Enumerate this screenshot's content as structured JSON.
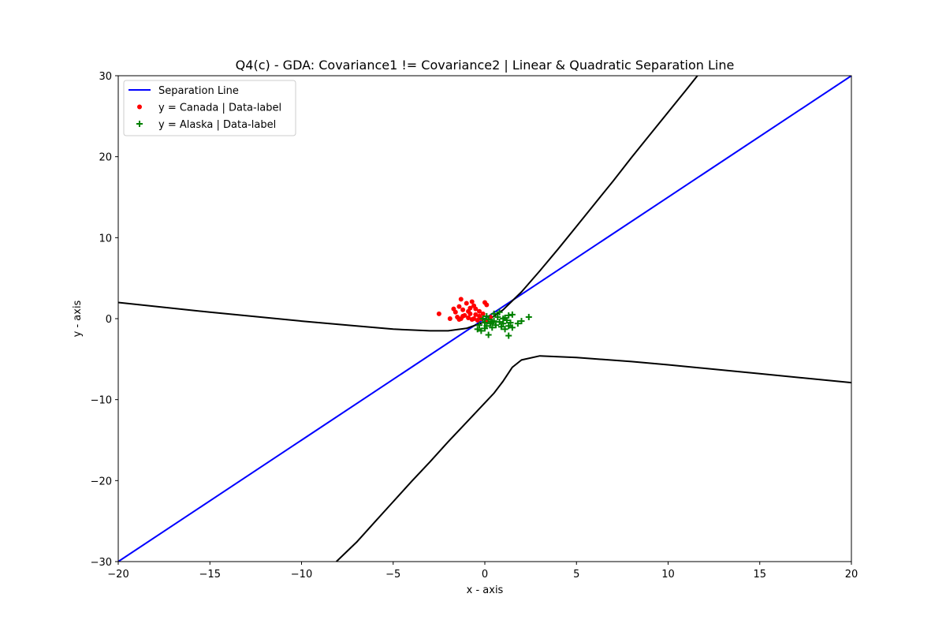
{
  "chart_data": {
    "type": "scatter",
    "title": "Q4(c) - GDA: Covariance1 != Covariance2 | Linear & Quadratic Separation Line",
    "xlabel": "x - axis",
    "ylabel": "y - axis",
    "xlim": [
      -20,
      20
    ],
    "ylim": [
      -30,
      30
    ],
    "xticks": [
      -20,
      -15,
      -10,
      -5,
      0,
      5,
      10,
      15,
      20
    ],
    "yticks": [
      -30,
      -20,
      -10,
      0,
      10,
      20,
      30
    ],
    "xtick_labels": [
      "−20",
      "−15",
      "−10",
      "−5",
      "0",
      "5",
      "10",
      "15",
      "20"
    ],
    "ytick_labels": [
      "−30",
      "−20",
      "−10",
      "0",
      "10",
      "20",
      "30"
    ],
    "grid": false,
    "legend_position": "top-left",
    "legend": [
      {
        "label": "Separation Line",
        "kind": "line",
        "color": "#0000ff"
      },
      {
        "label": "y = Canada | Data-label",
        "kind": "dot",
        "color": "#ff0000"
      },
      {
        "label": "y = Alaska | Data-label",
        "kind": "plus",
        "color": "#008000"
      }
    ],
    "lines": [
      {
        "name": "Separation Line",
        "color": "#0000ff",
        "points": [
          [
            -20,
            -30
          ],
          [
            20,
            30
          ]
        ]
      },
      {
        "color": "#000000",
        "points": [
          [
            -20,
            2.0
          ],
          [
            -15,
            0.8
          ],
          [
            -10,
            -0.3
          ],
          [
            -7,
            -0.9
          ],
          [
            -5,
            -1.3
          ],
          [
            -3,
            -1.5
          ],
          [
            -2,
            -1.5
          ],
          [
            -1,
            -1.2
          ],
          [
            0,
            -0.4
          ],
          [
            0.5,
            0.3
          ],
          [
            1,
            1.1
          ],
          [
            1.5,
            2.2
          ],
          [
            2,
            3.3
          ],
          [
            3,
            5.9
          ],
          [
            4,
            8.6
          ],
          [
            5,
            11.4
          ],
          [
            6,
            14.2
          ],
          [
            7,
            17.0
          ],
          [
            8,
            19.9
          ],
          [
            9,
            22.7
          ],
          [
            10,
            25.5
          ],
          [
            11,
            28.3
          ],
          [
            11.6,
            30
          ]
        ]
      },
      {
        "color": "#000000",
        "points": [
          [
            -8.1,
            -30
          ],
          [
            -7,
            -27.6
          ],
          [
            -6,
            -25.1
          ],
          [
            -5,
            -22.6
          ],
          [
            -4,
            -20.1
          ],
          [
            -3,
            -17.7
          ],
          [
            -2,
            -15.2
          ],
          [
            -1,
            -12.8
          ],
          [
            0,
            -10.4
          ],
          [
            0.5,
            -9.2
          ],
          [
            1,
            -7.7
          ],
          [
            1.5,
            -6.0
          ],
          [
            2,
            -5.1
          ],
          [
            3,
            -4.6
          ],
          [
            5,
            -4.8
          ],
          [
            8,
            -5.3
          ],
          [
            10,
            -5.7
          ],
          [
            15,
            -6.8
          ],
          [
            20,
            -7.9
          ]
        ]
      }
    ],
    "series": [
      {
        "name": "y = Canada | Data-label",
        "marker": "dot",
        "color": "#ff0000",
        "points": [
          [
            -2.5,
            0.6
          ],
          [
            -1.9,
            0.0
          ],
          [
            -1.7,
            1.2
          ],
          [
            -1.6,
            0.8
          ],
          [
            -1.5,
            0.2
          ],
          [
            -1.4,
            1.5
          ],
          [
            -1.3,
            2.4
          ],
          [
            -1.3,
            0.0
          ],
          [
            -1.2,
            1.1
          ],
          [
            -1.1,
            0.4
          ],
          [
            -1.0,
            1.9
          ],
          [
            -0.9,
            0.9
          ],
          [
            -0.9,
            0.1
          ],
          [
            -0.8,
            1.3
          ],
          [
            -0.8,
            0.6
          ],
          [
            -0.7,
            2.1
          ],
          [
            -0.6,
            1.6
          ],
          [
            -0.6,
            0.0
          ],
          [
            -0.5,
            1.2
          ],
          [
            -0.5,
            0.5
          ],
          [
            -0.4,
            -0.2
          ],
          [
            -0.3,
            0.9
          ],
          [
            -0.3,
            0.3
          ],
          [
            -0.2,
            0.0
          ],
          [
            -0.1,
            0.6
          ],
          [
            0.0,
            2.0
          ],
          [
            0.1,
            1.7
          ],
          [
            0.1,
            -0.3
          ],
          [
            -1.4,
            -0.1
          ],
          [
            -1.2,
            0.3
          ],
          [
            -0.7,
            -0.1
          ],
          [
            0.3,
            0.2
          ]
        ]
      },
      {
        "name": "y = Alaska | Data-label",
        "marker": "plus",
        "color": "#008000",
        "points": [
          [
            -0.4,
            -1.3
          ],
          [
            -0.3,
            -0.8
          ],
          [
            -0.2,
            -1.5
          ],
          [
            0.0,
            -0.5
          ],
          [
            0.1,
            -0.9
          ],
          [
            0.2,
            -0.1
          ],
          [
            0.2,
            -2.0
          ],
          [
            0.3,
            -0.6
          ],
          [
            0.4,
            -1.1
          ],
          [
            0.5,
            -0.3
          ],
          [
            0.6,
            -0.8
          ],
          [
            0.7,
            0.2
          ],
          [
            0.8,
            -0.4
          ],
          [
            0.9,
            -1.0
          ],
          [
            1.0,
            0.0
          ],
          [
            1.0,
            -0.6
          ],
          [
            1.1,
            -1.3
          ],
          [
            1.2,
            -0.2
          ],
          [
            1.3,
            -0.9
          ],
          [
            1.3,
            0.4
          ],
          [
            1.4,
            -0.5
          ],
          [
            1.5,
            -1.1
          ],
          [
            1.5,
            0.5
          ],
          [
            1.3,
            -2.1
          ],
          [
            1.8,
            -0.6
          ],
          [
            2.0,
            -0.3
          ],
          [
            2.4,
            0.2
          ],
          [
            0.1,
            0.3
          ],
          [
            0.5,
            0.6
          ],
          [
            0.8,
            0.8
          ],
          [
            0.0,
            -1.2
          ],
          [
            0.4,
            -0.4
          ],
          [
            1.1,
            0.1
          ],
          [
            -0.1,
            0.0
          ]
        ]
      }
    ]
  }
}
